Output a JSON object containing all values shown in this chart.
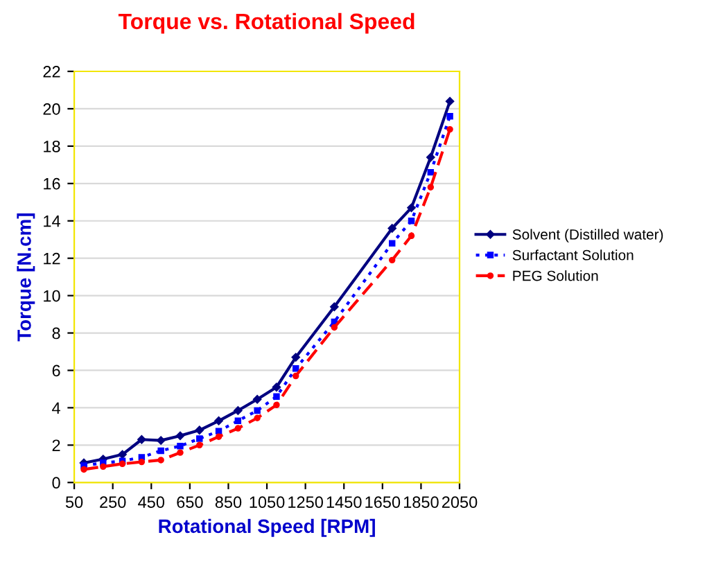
{
  "chart_data": {
    "type": "line",
    "title": "Torque vs. Rotational Speed",
    "xlabel": "Rotational Speed [RPM]",
    "ylabel": "Torque [N.cm]",
    "x": [
      100,
      200,
      300,
      400,
      500,
      600,
      700,
      800,
      900,
      1000,
      1100,
      1200,
      1400,
      1700,
      1800,
      1900,
      2000
    ],
    "series": [
      {
        "name": "Solvent (Distilled water)",
        "color": "#000080",
        "marker": "diamond",
        "line_style": "solid",
        "values": [
          1.05,
          1.25,
          1.5,
          2.3,
          2.25,
          2.5,
          2.8,
          3.3,
          3.85,
          4.45,
          5.1,
          6.7,
          9.4,
          13.6,
          14.7,
          17.4,
          20.4
        ]
      },
      {
        "name": "Surfactant Solution",
        "color": "#0000ff",
        "marker": "square",
        "line_style": "dotted",
        "values": [
          0.9,
          1.05,
          1.15,
          1.35,
          1.7,
          1.95,
          2.35,
          2.75,
          3.3,
          3.85,
          4.6,
          6.1,
          8.6,
          12.8,
          14.0,
          16.6,
          19.6
        ]
      },
      {
        "name": "PEG Solution",
        "color": "#ff0000",
        "marker": "circle",
        "line_style": "dashed",
        "values": [
          0.7,
          0.85,
          1.0,
          1.1,
          1.2,
          1.6,
          2.0,
          2.45,
          2.9,
          3.45,
          4.15,
          5.7,
          8.3,
          11.9,
          13.2,
          15.8,
          18.9
        ]
      }
    ],
    "xlim": [
      50,
      2050
    ],
    "xticks": [
      50,
      250,
      450,
      650,
      850,
      1050,
      1250,
      1450,
      1650,
      1850,
      2050
    ],
    "ylim": [
      0,
      22
    ],
    "yticks": [
      0,
      2,
      4,
      6,
      8,
      10,
      12,
      14,
      16,
      18,
      20,
      22
    ],
    "grid": "y",
    "legend": "right"
  }
}
